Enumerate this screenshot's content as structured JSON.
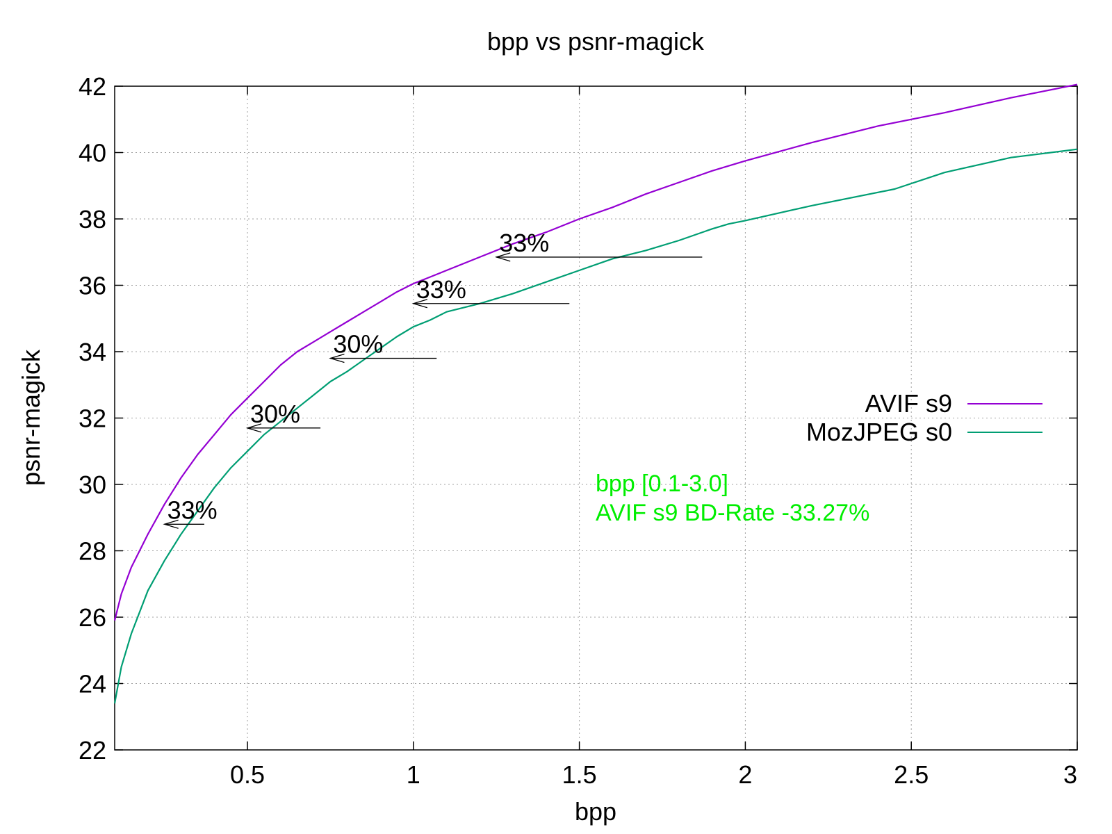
{
  "chart_data": {
    "type": "line",
    "title": "bpp vs psnr-magick",
    "xlabel": "bpp",
    "ylabel": "psnr-magick",
    "xlim": [
      0.1,
      3.0
    ],
    "ylim": [
      22,
      42
    ],
    "xticks": [
      0.5,
      1,
      1.5,
      2,
      2.5,
      3
    ],
    "xtick_labels": [
      "0.5",
      "1",
      "1.5",
      "2",
      "2.5",
      "3"
    ],
    "yticks": [
      22,
      24,
      26,
      28,
      30,
      32,
      34,
      36,
      38,
      40,
      42
    ],
    "ytick_labels": [
      "22",
      "24",
      "26",
      "28",
      "30",
      "32",
      "34",
      "36",
      "38",
      "40",
      "42"
    ],
    "grid": true,
    "legend_position": "right",
    "series": [
      {
        "name": "AVIF s9",
        "color": "#9400d3",
        "x": [
          0.1,
          0.12,
          0.15,
          0.2,
          0.25,
          0.3,
          0.35,
          0.4,
          0.45,
          0.5,
          0.55,
          0.6,
          0.65,
          0.7,
          0.75,
          0.8,
          0.85,
          0.9,
          0.95,
          1.0,
          1.05,
          1.1,
          1.2,
          1.3,
          1.4,
          1.5,
          1.6,
          1.7,
          1.8,
          1.9,
          2.0,
          2.2,
          2.4,
          2.6,
          2.8,
          3.0
        ],
        "y": [
          25.9,
          26.7,
          27.5,
          28.5,
          29.4,
          30.2,
          30.9,
          31.5,
          32.1,
          32.6,
          33.1,
          33.6,
          34.0,
          34.3,
          34.6,
          34.9,
          35.2,
          35.5,
          35.8,
          36.05,
          36.25,
          36.45,
          36.85,
          37.25,
          37.6,
          38.0,
          38.35,
          38.75,
          39.1,
          39.45,
          39.75,
          40.3,
          40.8,
          41.2,
          41.65,
          42.05
        ]
      },
      {
        "name": "MozJPEG s0",
        "color": "#009e73",
        "x": [
          0.1,
          0.12,
          0.15,
          0.2,
          0.25,
          0.3,
          0.35,
          0.4,
          0.45,
          0.5,
          0.55,
          0.6,
          0.65,
          0.7,
          0.75,
          0.8,
          0.85,
          0.9,
          0.95,
          1.0,
          1.05,
          1.1,
          1.2,
          1.3,
          1.4,
          1.5,
          1.6,
          1.7,
          1.8,
          1.9,
          1.95,
          2.0,
          2.2,
          2.45,
          2.6,
          2.8,
          3.0
        ],
        "y": [
          23.4,
          24.5,
          25.5,
          26.8,
          27.7,
          28.5,
          29.2,
          29.9,
          30.5,
          31.0,
          31.5,
          31.9,
          32.3,
          32.7,
          33.1,
          33.4,
          33.75,
          34.1,
          34.45,
          34.75,
          34.95,
          35.2,
          35.45,
          35.75,
          36.1,
          36.45,
          36.8,
          37.05,
          37.35,
          37.7,
          37.85,
          37.95,
          38.4,
          38.9,
          39.4,
          39.85,
          40.1
        ]
      }
    ],
    "annotations": [
      {
        "text": "33%",
        "x_from": 0.37,
        "x_to": 0.25,
        "y": 28.8
      },
      {
        "text": "30%",
        "x_from": 0.72,
        "x_to": 0.5,
        "y": 31.7
      },
      {
        "text": "30%",
        "x_from": 1.07,
        "x_to": 0.75,
        "y": 33.8
      },
      {
        "text": "33%",
        "x_from": 1.47,
        "x_to": 1.0,
        "y": 35.45
      },
      {
        "text": "33%",
        "x_from": 1.87,
        "x_to": 1.25,
        "y": 36.85
      }
    ],
    "notes": [
      "bpp [0.1-3.0]",
      "AVIF s9 BD-Rate -33.27%"
    ],
    "note_color": "#00ee00"
  }
}
